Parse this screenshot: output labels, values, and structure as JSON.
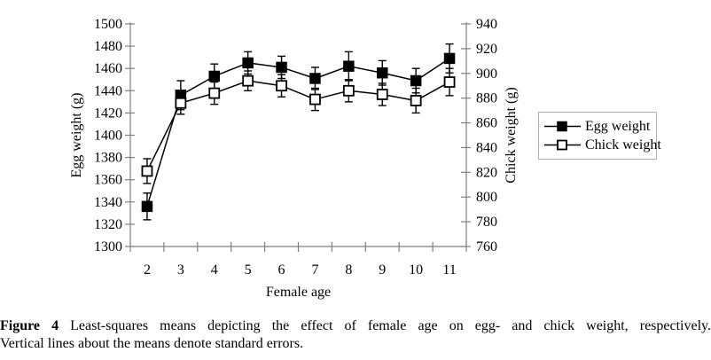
{
  "chart_data": {
    "type": "line",
    "x": [
      2,
      3,
      4,
      5,
      6,
      7,
      8,
      9,
      10,
      11
    ],
    "xlabel": "Female age",
    "series": [
      {
        "name": "Egg weight",
        "axis": "left",
        "marker": "filled-square",
        "values": [
          1336,
          1436,
          1453,
          1465,
          1461,
          1451,
          1462,
          1456,
          1449,
          1469
        ],
        "se": [
          12,
          13,
          11,
          10,
          10,
          10,
          13,
          11,
          11,
          13
        ]
      },
      {
        "name": "Chick weight",
        "axis": "right",
        "marker": "open-square",
        "values": [
          821,
          876,
          884,
          894,
          890,
          879,
          886,
          883,
          878,
          893
        ],
        "se": [
          10,
          9,
          9,
          8,
          9,
          9,
          9,
          9,
          10,
          11
        ]
      }
    ],
    "left_axis": {
      "label": "Egg weight (g)",
      "min": 1300,
      "max": 1500,
      "step": 20,
      "ticks": [
        1300,
        1320,
        1340,
        1360,
        1380,
        1400,
        1420,
        1440,
        1460,
        1480,
        1500
      ]
    },
    "right_axis": {
      "label": "Chick weight (g)",
      "min": 760,
      "max": 940,
      "step": 20,
      "ticks": [
        760,
        780,
        800,
        820,
        840,
        860,
        880,
        900,
        920,
        940
      ]
    },
    "legend": {
      "position": "right",
      "entries": [
        "Egg weight",
        "Chick weight"
      ]
    },
    "grid": false,
    "title": "",
    "colors": {
      "series": "#000000",
      "axis": "#808080",
      "text": "#000000",
      "legend_border": "#b0b0b0",
      "background": "#ffffff"
    }
  },
  "caption": {
    "prefix": "Figure 4",
    "line1": " Least-squares means depicting the effect of female age on egg- and chick weight, respectively.",
    "line2": "Vertical lines about the means denote standard errors."
  }
}
